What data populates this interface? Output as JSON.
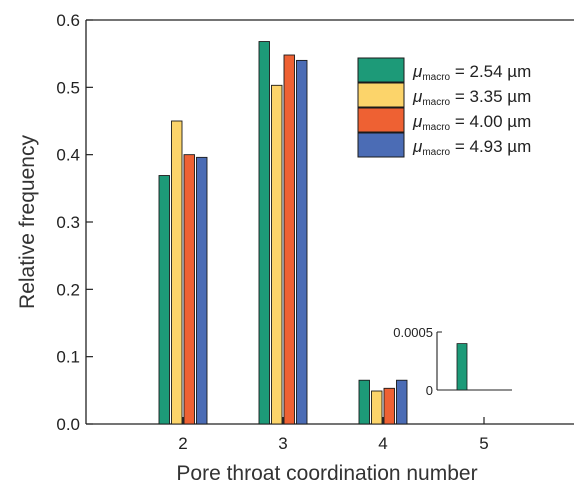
{
  "chart_data": {
    "type": "bar",
    "categories": [
      "2",
      "3",
      "4",
      "5"
    ],
    "series": [
      {
        "name_symbol": "μ",
        "name_sub": "macro",
        "name_rest": " = 2.54 µm",
        "color": "#1d9a78",
        "values": [
          0.369,
          0.568,
          0.065,
          0.0004
        ]
      },
      {
        "name_symbol": "μ",
        "name_sub": "macro",
        "name_rest": " = 3.35 µm",
        "color": "#fcd46a",
        "values": [
          0.45,
          0.503,
          0.049,
          0
        ]
      },
      {
        "name_symbol": "μ",
        "name_sub": "macro",
        "name_rest": " = 4.00 µm",
        "color": "#ee6133",
        "values": [
          0.4,
          0.548,
          0.053,
          0
        ]
      },
      {
        "name_symbol": "μ",
        "name_sub": "macro",
        "name_rest": " = 4.93 µm",
        "color": "#4b6cb5",
        "values": [
          0.396,
          0.54,
          0.065,
          0
        ]
      }
    ],
    "xlabel": "Pore throat coordination number",
    "ylabel": "Relative frequency",
    "ylim": [
      0,
      0.6
    ],
    "yticks": [
      "0.0",
      "0.1",
      "0.2",
      "0.3",
      "0.4",
      "0.5",
      "0.6"
    ],
    "grid": false,
    "legend_position": "top-right",
    "inset": {
      "category": "5",
      "yticks": [
        "0",
        "0.0005"
      ],
      "ylim": [
        0,
        0.0005
      ],
      "value": 0.0004
    }
  }
}
